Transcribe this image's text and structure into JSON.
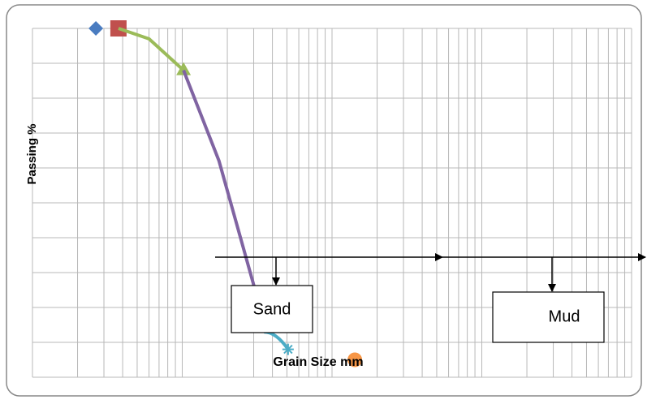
{
  "chart_data": {
    "type": "line",
    "y_label": "Passing %",
    "x_label": "Grain Size mm",
    "annotations": [
      "Sand",
      "Mud"
    ],
    "xscale": "log",
    "xlim": [
      0.01,
      100
    ],
    "ylim": [
      0,
      100
    ],
    "xticks": [
      0.01,
      0.02,
      0.03,
      0.04,
      0.05,
      0.06,
      0.07,
      0.08,
      0.09,
      0.1,
      0.2,
      0.3,
      0.4,
      0.5,
      0.6,
      0.7,
      0.8,
      0.9,
      1,
      2,
      3,
      4,
      5,
      6,
      7,
      8,
      9,
      10,
      20,
      30,
      40,
      50,
      60,
      70,
      80,
      90,
      100
    ],
    "yticks": [
      0,
      10,
      20,
      30,
      40,
      50,
      60,
      70,
      80,
      90,
      100
    ],
    "grid": true,
    "series": [
      {
        "color": "#4a7cc0",
        "marker": "diamond",
        "x": [
          0.0265
        ],
        "values": [
          100
        ]
      },
      {
        "color": "#c0504d",
        "marker": "square",
        "x": [
          0.0375
        ],
        "values": [
          100
        ]
      },
      {
        "color": "#9bbb59",
        "marker": "none",
        "x": [
          0.0375,
          0.06,
          0.102
        ],
        "values": [
          100,
          97,
          88
        ]
      },
      {
        "color": "#9bbb59",
        "marker": "triangle",
        "x": [
          0.102
        ],
        "values": [
          88
        ]
      },
      {
        "color": "#8064a2",
        "marker": "none",
        "x": [
          0.102,
          0.176,
          0.302
        ],
        "values": [
          88,
          62,
          26
        ]
      },
      {
        "color": "#4bacc6",
        "marker": "none",
        "x": [
          0.351,
          0.509
        ],
        "values": [
          13,
          8
        ]
      },
      {
        "color": "#4bacc6",
        "marker": "star",
        "x": [
          0.509
        ],
        "values": [
          8
        ]
      },
      {
        "color": "#f79646",
        "marker": "circle",
        "x": [
          1.42
        ],
        "values": [
          5
        ]
      }
    ]
  }
}
